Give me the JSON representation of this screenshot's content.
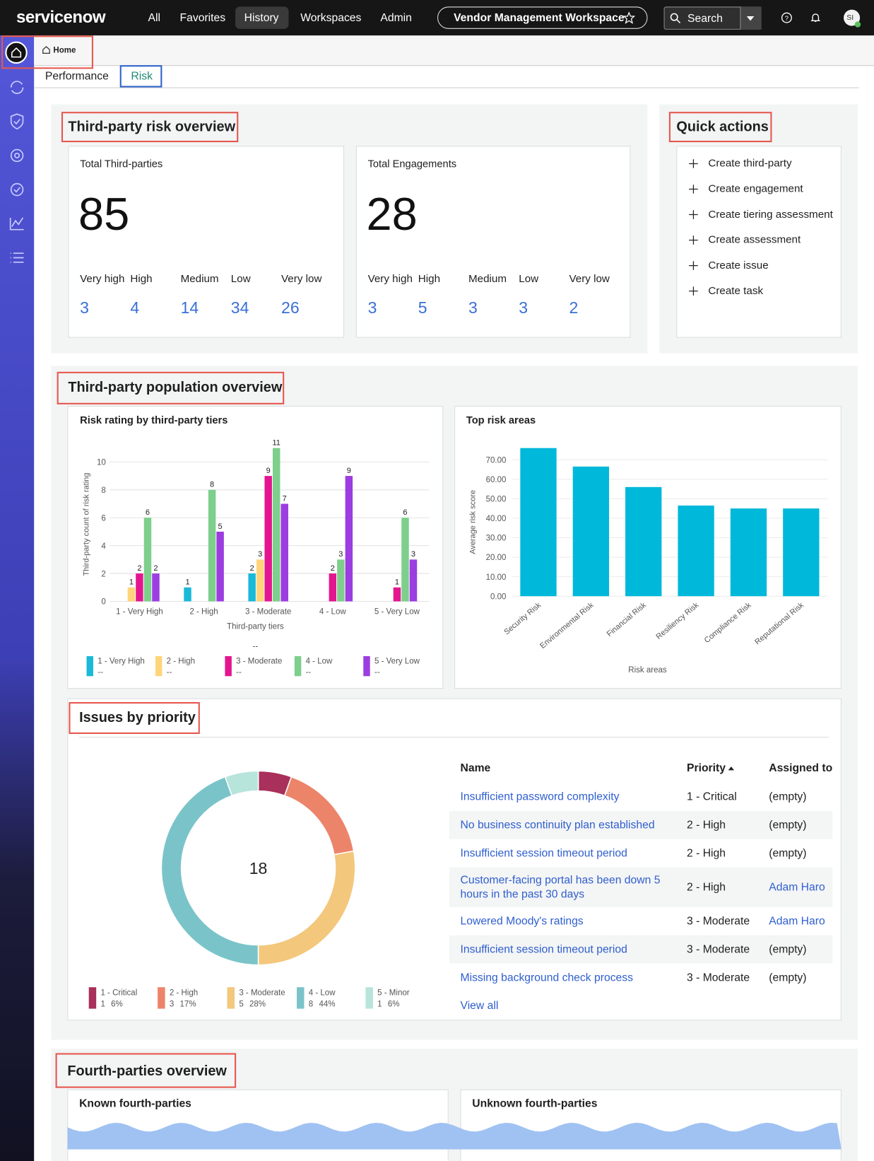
{
  "nav": {
    "logo": "servicenow",
    "menu": [
      "All",
      "Favorites",
      "History",
      "Workspaces",
      "Admin"
    ],
    "workspace": "Vendor Management Workspace",
    "search": "Search",
    "avatar": "SI"
  },
  "breadcrumb": "Home",
  "tabs": [
    "Performance",
    "Risk"
  ],
  "risk_overview": {
    "title": "Third-party risk overview",
    "cards": [
      {
        "title": "Total Third-parties",
        "total": 85,
        "levels": [
          "Very high",
          "High",
          "Medium",
          "Low",
          "Very low"
        ],
        "counts": [
          3,
          4,
          14,
          34,
          26
        ]
      },
      {
        "title": "Total Engagements",
        "total": 28,
        "levels": [
          "Very high",
          "High",
          "Medium",
          "Low",
          "Very low"
        ],
        "counts": [
          3,
          5,
          3,
          3,
          2
        ]
      }
    ]
  },
  "quick_actions": {
    "title": "Quick actions",
    "items": [
      "Create third-party",
      "Create engagement",
      "Create tiering assessment",
      "Create assessment",
      "Create issue",
      "Create task"
    ]
  },
  "population_overview": {
    "title": "Third-party population overview"
  },
  "chart_data": [
    {
      "type": "bar",
      "title": "Risk rating by third-party tiers",
      "ylabel": "Third-party count of risk rating",
      "xlabel": "Third-party tiers",
      "categories": [
        "1 - Very High",
        "2 - High",
        "3 - Moderate",
        "4 - Low",
        "5 - Very Low"
      ],
      "series": [
        {
          "name": "1 - Very High",
          "color": "#19b9d8",
          "values": [
            null,
            1,
            2,
            null,
            null
          ],
          "legend_value": "--"
        },
        {
          "name": "2 - High",
          "color": "#ffd47a",
          "values": [
            1,
            null,
            3,
            null,
            null
          ],
          "legend_value": "--"
        },
        {
          "name": "3 - Moderate",
          "color": "#e3168f",
          "values": [
            2,
            null,
            9,
            2,
            1
          ],
          "legend_value": "--"
        },
        {
          "name": "4 - Low",
          "color": "#7dcf8b",
          "values": [
            6,
            8,
            11,
            3,
            6
          ],
          "legend_value": "--"
        },
        {
          "name": "5 - Very Low",
          "color": "#9b3de0",
          "values": [
            2,
            5,
            7,
            9,
            3
          ],
          "legend_value": "--"
        }
      ],
      "legend_note": "--",
      "ylim": [
        0,
        11
      ],
      "yticks": [
        0,
        2,
        4,
        6,
        8,
        10
      ],
      "grid": true
    },
    {
      "type": "bar",
      "title": "Top risk areas",
      "ylabel": "Average risk score",
      "xlabel": "Risk areas",
      "categories": [
        "Security Risk",
        "Environmental Risk",
        "Financial Risk",
        "Resiliency Risk",
        "Compliance Risk",
        "Reputational Risk"
      ],
      "values": [
        76,
        66.5,
        56,
        46.5,
        45,
        45
      ],
      "color": "#00b8d9",
      "ylim": [
        0,
        76
      ],
      "yticks": [
        {
          "value": 0,
          "label": "0.00"
        },
        {
          "value": 10,
          "label": "10.00"
        },
        {
          "value": 20,
          "label": "20.00"
        },
        {
          "value": 30,
          "label": "30.00"
        },
        {
          "value": 40,
          "label": "40.00"
        },
        {
          "value": 50,
          "label": "50.00"
        },
        {
          "value": 60,
          "label": "60.00"
        },
        {
          "value": 70,
          "label": "70.00"
        }
      ],
      "grid": true
    },
    {
      "type": "pie",
      "total": 18,
      "categories": [
        "1 - Critical",
        "2 - High",
        "3 - Moderate",
        "4 - Low",
        "5 - Minor"
      ],
      "values": [
        1,
        3,
        5,
        8,
        1
      ],
      "share_labels": [
        "6%",
        "17%",
        "28%",
        "44%",
        "6%"
      ],
      "colors": [
        "#a8305b",
        "#ec846a",
        "#f3c77c",
        "#7ac4c9",
        "#b7e4db"
      ]
    }
  ],
  "issues": {
    "title": "Issues by priority",
    "table": {
      "columns": [
        "Name",
        "Priority",
        "Assigned to"
      ],
      "rows": [
        [
          "Insufficient password complexity",
          "1 - Critical",
          "(empty)"
        ],
        [
          "No business continuity plan established",
          "2 - High",
          "(empty)"
        ],
        [
          "Insufficient session timeout period",
          "2 - High",
          "(empty)"
        ],
        [
          "Customer-facing portal has been down 5 hours in the past 30 days",
          "2 - High",
          "Adam Haro"
        ],
        [
          "Lowered Moody's ratings",
          "3 - Moderate",
          "Adam Haro"
        ],
        [
          "Insufficient session timeout period",
          "3 - Moderate",
          "(empty)"
        ],
        [
          "Missing background check process",
          "3 - Moderate",
          "(empty)"
        ]
      ]
    },
    "view_all": "View all"
  },
  "fourth_parties": {
    "title": "Fourth-parties overview",
    "cards": [
      "Known fourth-parties",
      "Unknown fourth-parties"
    ]
  }
}
